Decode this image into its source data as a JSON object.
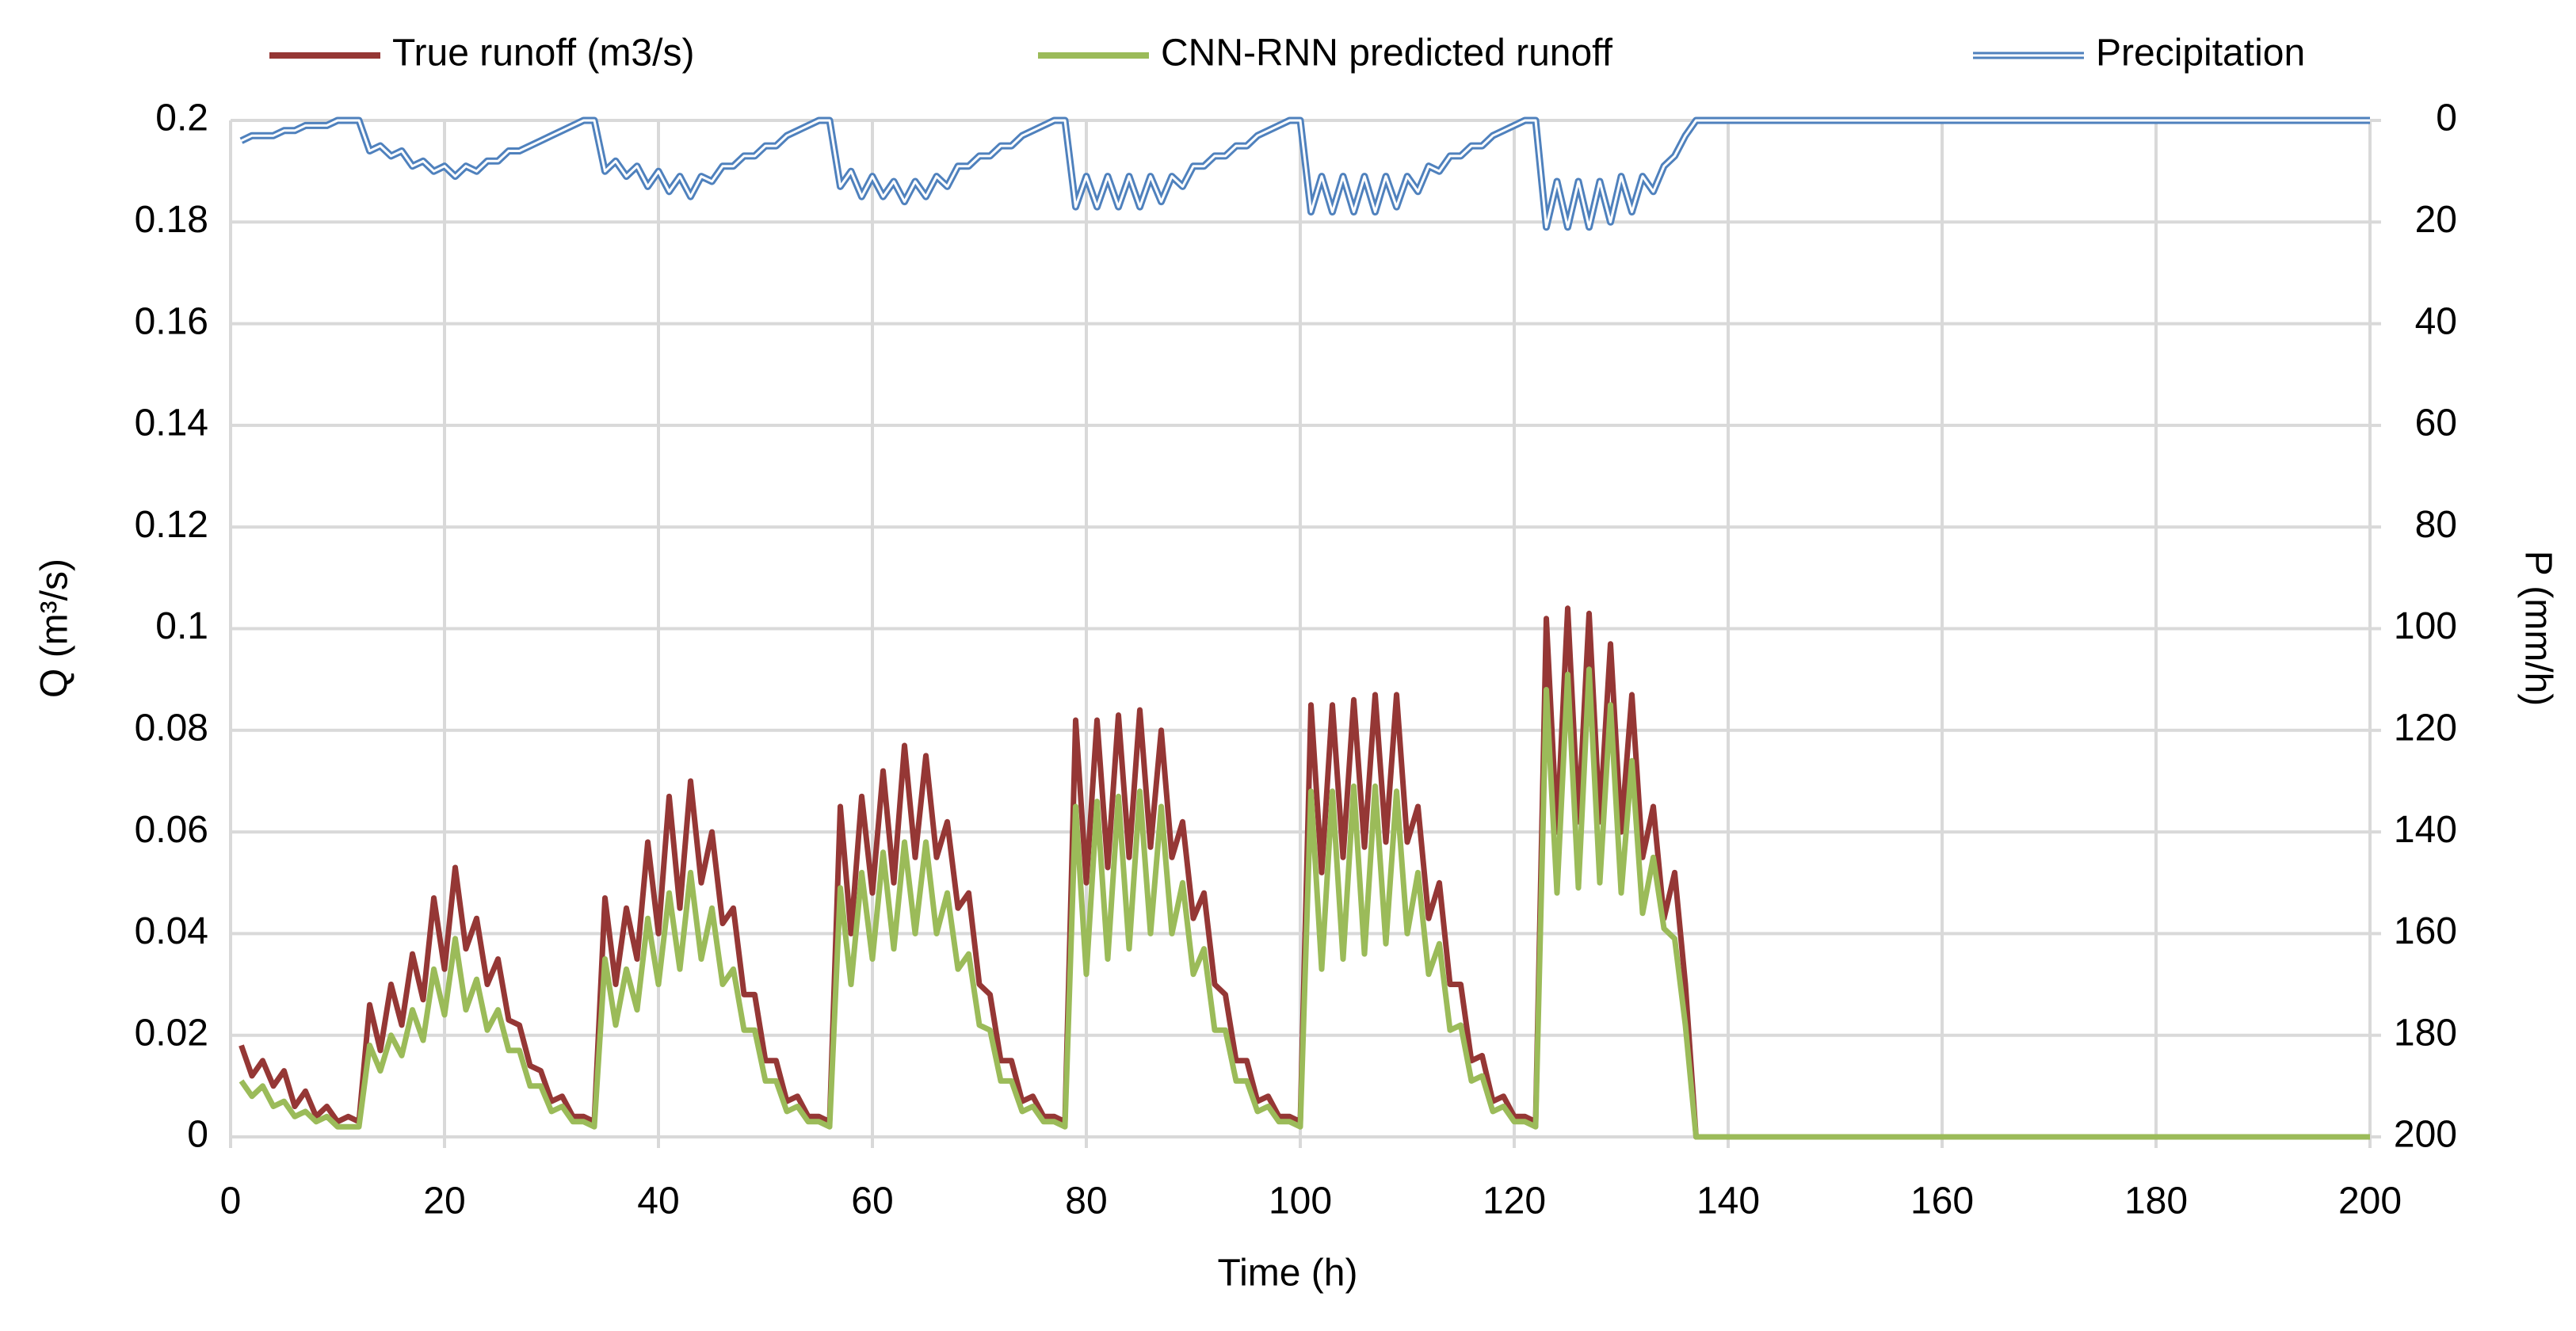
{
  "chart_data": {
    "type": "line",
    "xlabel": "Time (h)",
    "ylabel": "Q (m³/s)",
    "y2label": "P (mm/h)",
    "x": [
      1,
      2,
      3,
      4,
      5,
      6,
      7,
      8,
      9,
      10,
      11,
      12,
      13,
      14,
      15,
      16,
      17,
      18,
      19,
      20,
      21,
      22,
      23,
      24,
      25,
      26,
      27,
      28,
      29,
      30,
      31,
      32,
      33,
      34,
      35,
      36,
      37,
      38,
      39,
      40,
      41,
      42,
      43,
      44,
      45,
      46,
      47,
      48,
      49,
      50,
      51,
      52,
      53,
      54,
      55,
      56,
      57,
      58,
      59,
      60,
      61,
      62,
      63,
      64,
      65,
      66,
      67,
      68,
      69,
      70,
      71,
      72,
      73,
      74,
      75,
      76,
      77,
      78,
      79,
      80,
      81,
      82,
      83,
      84,
      85,
      86,
      87,
      88,
      89,
      90,
      91,
      92,
      93,
      94,
      95,
      96,
      97,
      98,
      99,
      100,
      101,
      102,
      103,
      104,
      105,
      106,
      107,
      108,
      109,
      110,
      111,
      112,
      113,
      114,
      115,
      116,
      117,
      118,
      119,
      120,
      121,
      122,
      123,
      124,
      125,
      126,
      127,
      128,
      129,
      130,
      131,
      132,
      133,
      134,
      135,
      136,
      137,
      200
    ],
    "series": [
      {
        "name": "True runoff (m3/s)",
        "color": "#953735",
        "style": "solid",
        "values": [
          0.018,
          0.012,
          0.015,
          0.01,
          0.013,
          0.006,
          0.009,
          0.004,
          0.006,
          0.003,
          0.004,
          0.003,
          0.026,
          0.017,
          0.03,
          0.022,
          0.036,
          0.027,
          0.047,
          0.033,
          0.053,
          0.037,
          0.043,
          0.03,
          0.035,
          0.023,
          0.022,
          0.014,
          0.013,
          0.007,
          0.008,
          0.004,
          0.004,
          0.003,
          0.047,
          0.03,
          0.045,
          0.035,
          0.058,
          0.04,
          0.067,
          0.045,
          0.07,
          0.05,
          0.06,
          0.042,
          0.045,
          0.028,
          0.028,
          0.015,
          0.015,
          0.007,
          0.008,
          0.004,
          0.004,
          0.003,
          0.065,
          0.04,
          0.067,
          0.048,
          0.072,
          0.05,
          0.077,
          0.055,
          0.075,
          0.055,
          0.062,
          0.045,
          0.048,
          0.03,
          0.028,
          0.015,
          0.015,
          0.007,
          0.008,
          0.004,
          0.004,
          0.003,
          0.082,
          0.05,
          0.082,
          0.053,
          0.083,
          0.055,
          0.084,
          0.057,
          0.08,
          0.055,
          0.062,
          0.043,
          0.048,
          0.03,
          0.028,
          0.015,
          0.015,
          0.007,
          0.008,
          0.004,
          0.004,
          0.003,
          0.085,
          0.052,
          0.085,
          0.055,
          0.086,
          0.057,
          0.087,
          0.058,
          0.087,
          0.058,
          0.065,
          0.043,
          0.05,
          0.03,
          0.03,
          0.015,
          0.016,
          0.007,
          0.008,
          0.004,
          0.004,
          0.003,
          0.102,
          0.06,
          0.104,
          0.062,
          0.103,
          0.062,
          0.097,
          0.06,
          0.087,
          0.055,
          0.065,
          0.043,
          0.052,
          0.03,
          0,
          0
        ]
      },
      {
        "name": "CNN-RNN predicted runoff",
        "color": "#9bbb59",
        "style": "solid",
        "values": [
          0.011,
          0.008,
          0.01,
          0.006,
          0.007,
          0.004,
          0.005,
          0.003,
          0.004,
          0.002,
          0.002,
          0.002,
          0.018,
          0.013,
          0.02,
          0.016,
          0.025,
          0.019,
          0.033,
          0.024,
          0.039,
          0.025,
          0.031,
          0.021,
          0.025,
          0.017,
          0.017,
          0.01,
          0.01,
          0.005,
          0.006,
          0.003,
          0.003,
          0.002,
          0.035,
          0.022,
          0.033,
          0.025,
          0.043,
          0.03,
          0.048,
          0.033,
          0.052,
          0.035,
          0.045,
          0.03,
          0.033,
          0.021,
          0.021,
          0.011,
          0.011,
          0.005,
          0.006,
          0.003,
          0.003,
          0.002,
          0.049,
          0.03,
          0.052,
          0.035,
          0.056,
          0.037,
          0.058,
          0.04,
          0.058,
          0.04,
          0.048,
          0.033,
          0.036,
          0.022,
          0.021,
          0.011,
          0.011,
          0.005,
          0.006,
          0.003,
          0.003,
          0.002,
          0.065,
          0.032,
          0.066,
          0.035,
          0.067,
          0.037,
          0.068,
          0.04,
          0.065,
          0.04,
          0.05,
          0.032,
          0.037,
          0.021,
          0.021,
          0.011,
          0.011,
          0.005,
          0.006,
          0.003,
          0.003,
          0.002,
          0.068,
          0.033,
          0.068,
          0.035,
          0.069,
          0.036,
          0.069,
          0.038,
          0.068,
          0.04,
          0.052,
          0.032,
          0.038,
          0.021,
          0.022,
          0.011,
          0.012,
          0.005,
          0.006,
          0.003,
          0.003,
          0.002,
          0.088,
          0.048,
          0.091,
          0.049,
          0.092,
          0.05,
          0.085,
          0.048,
          0.074,
          0.044,
          0.055,
          0.041,
          0.039,
          0.022,
          0,
          0
        ]
      },
      {
        "name": "Precipitation",
        "color": "#4f81bd",
        "style": "double",
        "axis": "y2",
        "values": [
          4,
          3,
          3,
          3,
          2,
          2,
          1,
          1,
          1,
          0,
          0,
          0,
          6,
          5,
          7,
          6,
          9,
          8,
          10,
          9,
          11,
          9,
          10,
          8,
          8,
          6,
          6,
          5,
          4,
          3,
          2,
          1,
          0,
          0,
          10,
          8,
          11,
          9,
          13,
          10,
          14,
          11,
          15,
          11,
          12,
          9,
          9,
          7,
          7,
          5,
          5,
          3,
          2,
          1,
          0,
          0,
          13,
          10,
          15,
          11,
          15,
          12,
          16,
          12,
          15,
          11,
          13,
          9,
          9,
          7,
          7,
          5,
          5,
          3,
          2,
          1,
          0,
          0,
          17,
          11,
          17,
          11,
          17,
          11,
          17,
          11,
          16,
          11,
          13,
          9,
          9,
          7,
          7,
          5,
          5,
          3,
          2,
          1,
          0,
          0,
          18,
          11,
          18,
          11,
          18,
          11,
          18,
          11,
          17,
          11,
          14,
          9,
          10,
          7,
          7,
          5,
          5,
          3,
          2,
          1,
          0,
          0,
          21,
          12,
          21,
          12,
          21,
          12,
          20,
          11,
          18,
          11,
          14,
          9,
          7,
          3,
          0,
          0
        ]
      }
    ],
    "xlim": [
      0,
      200
    ],
    "xticks": [
      0,
      20,
      40,
      60,
      80,
      100,
      120,
      140,
      160,
      180,
      200
    ],
    "ylim": [
      0,
      0.2
    ],
    "yticks": [
      0,
      0.02,
      0.04,
      0.06,
      0.08,
      0.1,
      0.12,
      0.14,
      0.16,
      0.18,
      0.2
    ],
    "y2lim": [
      0,
      200
    ],
    "y2ticks": [
      0,
      20,
      40,
      60,
      80,
      100,
      120,
      140,
      160,
      180,
      200
    ],
    "y2_reversed": true,
    "grid": true,
    "legend": "top"
  }
}
